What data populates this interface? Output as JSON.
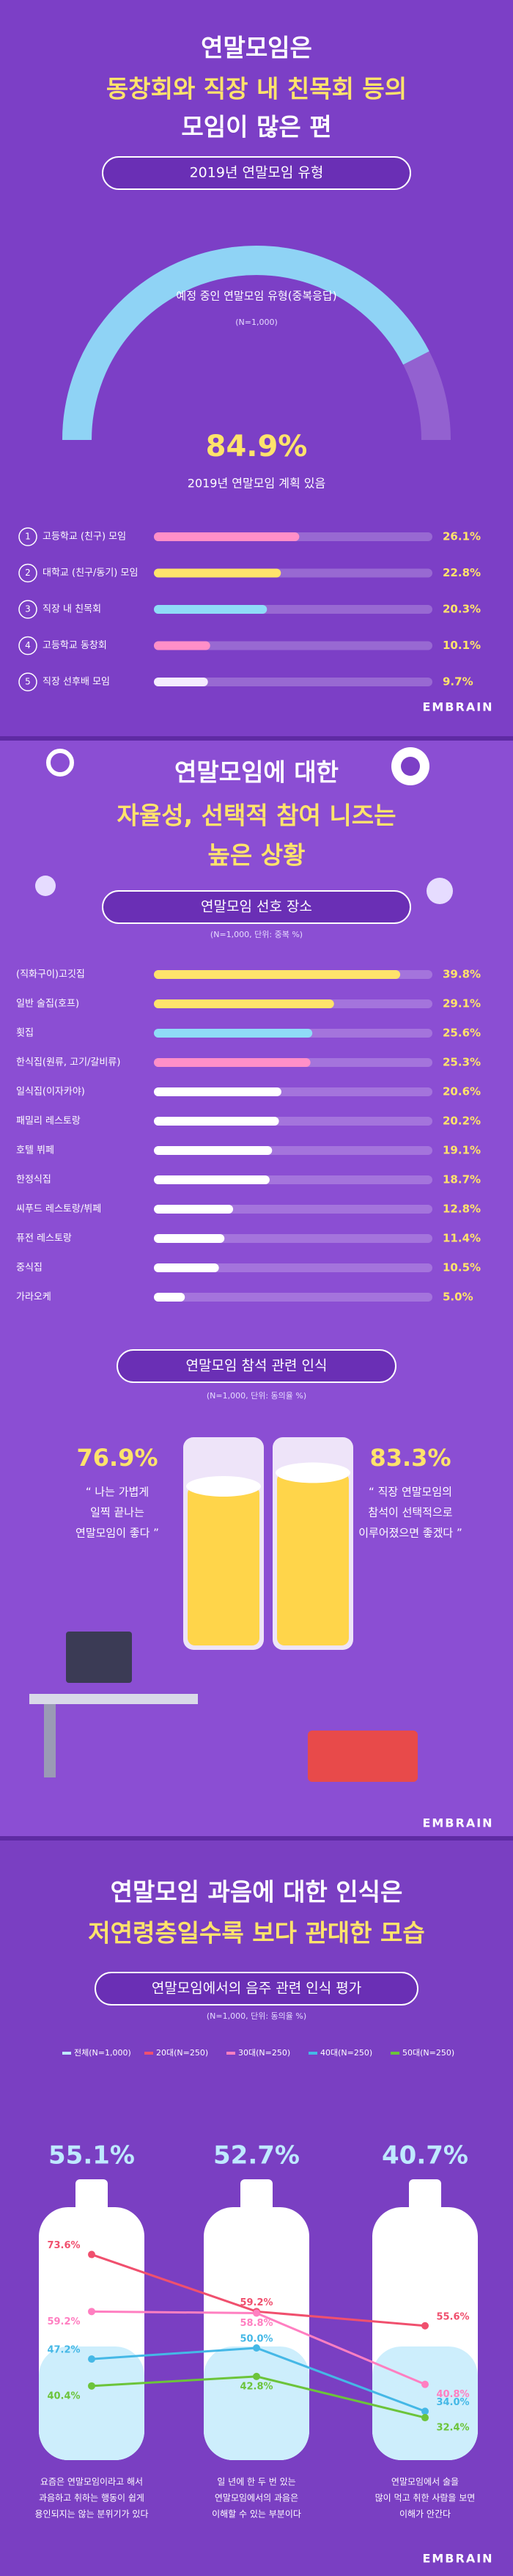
{
  "chart_data": [
    {
      "type": "bar",
      "title": [
        "연말모임은",
        "동창회와 직장 내 친목회 등의",
        "모임이 많은 편"
      ],
      "subtitle": "2019년 연말모임 유형",
      "note": "예정 중인 연말모임 유형(중복응답)",
      "sample": "(N=1,000)",
      "highlight": {
        "value": 84.9,
        "label": "84.9%",
        "text": "2019년 연말모임 계획 있음"
      },
      "ranks": [
        1,
        2,
        3,
        4,
        5
      ],
      "categories": [
        "고등학교 (친구) 모임",
        "대학교 (친구/동기) 모임",
        "직장 내 친목회",
        "고등학교 동창회",
        "직장 선후배 모임"
      ],
      "values": [
        26.1,
        22.8,
        20.3,
        10.1,
        9.7
      ],
      "value_labels": [
        "26.1%",
        "22.8%",
        "20.3%",
        "10.1%",
        "9.7%"
      ],
      "colors": [
        "#ff8fc8",
        "#ffe36b",
        "#8fdcf7",
        "#ff8fc8",
        "#f4ecff"
      ],
      "xlim": [
        0,
        50
      ],
      "source": "EMBRAIN"
    },
    {
      "type": "bar",
      "title": [
        "연말모임에 대한",
        "자율성, 선택적 참여 니즈는",
        "높은 상황"
      ],
      "subtitle": "연말모임 선호 장소",
      "sample": "(N=1,000, 단위: 중복 %)",
      "categories": [
        "(직화구이)고깃집",
        "일반 술집(호프)",
        "횟집",
        "한식집(원류, 고기/갈비류)",
        "일식집(이자카야)",
        "패밀리 레스토랑",
        "호텔 뷔페",
        "한정식집",
        "씨푸드 레스토랑/뷔페",
        "퓨전 레스토랑",
        "중식집",
        "가라오케"
      ],
      "values": [
        39.8,
        29.1,
        25.6,
        25.3,
        20.6,
        20.2,
        19.1,
        18.7,
        12.8,
        11.4,
        10.5,
        5.0
      ],
      "value_labels": [
        "39.8%",
        "29.1%",
        "25.6%",
        "25.3%",
        "20.6%",
        "20.2%",
        "19.1%",
        "18.7%",
        "12.8%",
        "11.4%",
        "10.5%",
        "5.0%"
      ],
      "colors": [
        "#ffe36b",
        "#ffe36b",
        "#8fdcf7",
        "#ff8fc8",
        "#ffffff",
        "#ffffff",
        "#ffffff",
        "#ffffff",
        "#ffffff",
        "#ffffff",
        "#ffffff",
        "#ffffff"
      ],
      "xlim": [
        0,
        45
      ]
    },
    {
      "type": "glass",
      "subtitle": "연말모임 참석 관련 인식",
      "sample": "(N=1,000, 단위: 동의율 %)",
      "categories": [
        [
          "“ 나는 가볍게",
          "일찍 끝나는",
          "연말모임이 좋다 ”"
        ],
        [
          "“ 직장 연말모임의",
          "참석이 선택적으로",
          "이루어졌으면 좋겠다 ”"
        ]
      ],
      "values": [
        76.9,
        83.3
      ],
      "value_labels": [
        "76.9%",
        "83.3%"
      ],
      "ylim": [
        0,
        100
      ],
      "color": "#ffd54a",
      "source": "EMBRAIN"
    },
    {
      "type": "line",
      "title": [
        "연말모임 과음에 대한 인식은",
        "저연령층일수록 보다 관대한 모습"
      ],
      "subtitle": "연말모임에서의 음주 관련 인식 평가",
      "sample": "(N=1,000, 단위: 동의율 %)",
      "categories": [
        [
          "요즘은 연말모임이라고 해서",
          "과음하고 취하는 행동이 쉽게",
          "용인되지는 않는 분위기가 있다"
        ],
        [
          "일 년에 한 두 번 있는",
          "연말모임에서의 과음은",
          "이해할 수 있는 부분이다"
        ],
        [
          "연말모임에서 술을",
          "많이 먹고 취한 사람을 보면",
          "이해가 안간다"
        ]
      ],
      "series": [
        {
          "name": "전체(N=1,000)",
          "color": "#bfe9ff",
          "values": [
            55.1,
            52.7,
            40.7
          ],
          "value_labels": [
            "55.1%",
            "52.7%",
            "40.7%"
          ]
        },
        {
          "name": "20대(N=250)",
          "color": "#f0506e",
          "values": [
            73.6,
            59.2,
            55.6
          ],
          "value_labels": [
            "73.6%",
            "59.2%",
            "55.6%"
          ]
        },
        {
          "name": "30대(N=250)",
          "color": "#ff7fc1",
          "values": [
            59.2,
            58.8,
            40.8
          ],
          "value_labels": [
            "59.2%",
            "58.8%",
            "40.8%"
          ]
        },
        {
          "name": "40대(N=250)",
          "color": "#45b8e6",
          "values": [
            47.2,
            50.0,
            34.0
          ],
          "value_labels": [
            "47.2%",
            "50.0%",
            "34.0%"
          ]
        },
        {
          "name": "50대(N=250)",
          "color": "#6cc43a",
          "values": [
            40.4,
            42.8,
            32.4
          ],
          "value_labels": [
            "40.4%",
            "42.8%",
            "32.4%"
          ]
        }
      ],
      "ylim": [
        30,
        80
      ],
      "source": "EMBRAIN"
    }
  ]
}
